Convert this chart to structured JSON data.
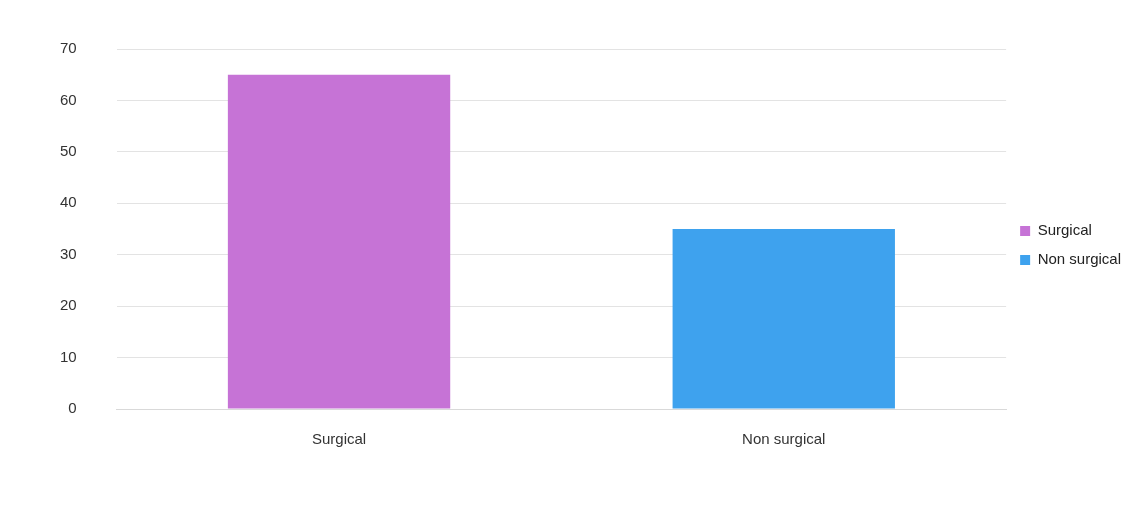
{
  "chart_data": {
    "type": "bar",
    "categories": [
      "Surgical",
      "Non surgical"
    ],
    "series": [
      {
        "name": "Surgical",
        "color": "#c673d6",
        "values": [
          65,
          null
        ]
      },
      {
        "name": "Non surgical",
        "color": "#3ea2ee",
        "values": [
          null,
          35
        ]
      }
    ],
    "ylim": [
      0,
      70
    ],
    "yticks": [
      0,
      10,
      20,
      30,
      40,
      50,
      60,
      70
    ],
    "grid": "y",
    "legend": "right"
  }
}
